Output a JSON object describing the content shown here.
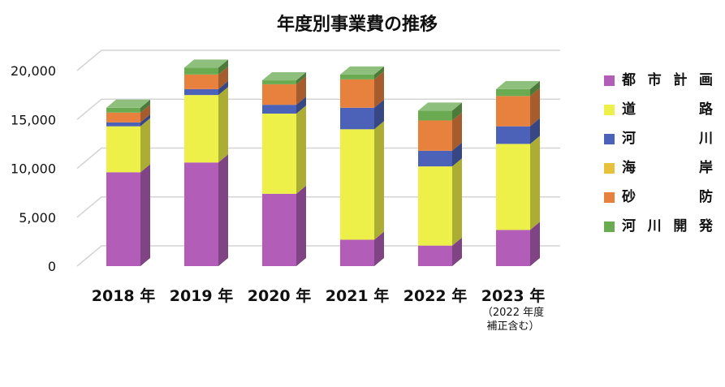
{
  "chart_data": {
    "type": "bar",
    "stacked": true,
    "title": "年度別事業費の推移",
    "categories": [
      "2018 年",
      "2019 年",
      "2020 年",
      "2021 年",
      "2022 年",
      "2023 年"
    ],
    "category_notes": [
      "",
      "",
      "",
      "",
      "",
      "（2022 年度\n補正含む）"
    ],
    "series": [
      {
        "name": "都 市 計 画",
        "color": "#b25db8",
        "values": [
          9600,
          10600,
          7400,
          2700,
          2100,
          3700
        ]
      },
      {
        "name": "道　　 路",
        "color": "#eef04a",
        "values": [
          4700,
          6900,
          8200,
          11300,
          8100,
          8800
        ]
      },
      {
        "name": "河　　 川",
        "color": "#4b62b8",
        "values": [
          400,
          600,
          900,
          2200,
          1600,
          1800
        ]
      },
      {
        "name": "海　　 岸",
        "color": "#e8c13c",
        "values": [
          0,
          0,
          0,
          0,
          0,
          0
        ]
      },
      {
        "name": "砂　　 防",
        "color": "#e8803e",
        "values": [
          1000,
          1500,
          2100,
          2900,
          3100,
          3100
        ]
      },
      {
        "name": "河 川 開 発",
        "color": "#6aaa50",
        "values": [
          500,
          700,
          400,
          500,
          1000,
          700
        ]
      }
    ],
    "ylim": [
      0,
      20000
    ],
    "yticks": [
      0,
      5000,
      10000,
      15000,
      20000
    ],
    "ytick_labels": [
      "0",
      "5,000",
      "10,000",
      "15,000",
      "20,000"
    ],
    "xlabel": "",
    "ylabel": "",
    "grid": true,
    "legend": "right",
    "three_d": true
  }
}
